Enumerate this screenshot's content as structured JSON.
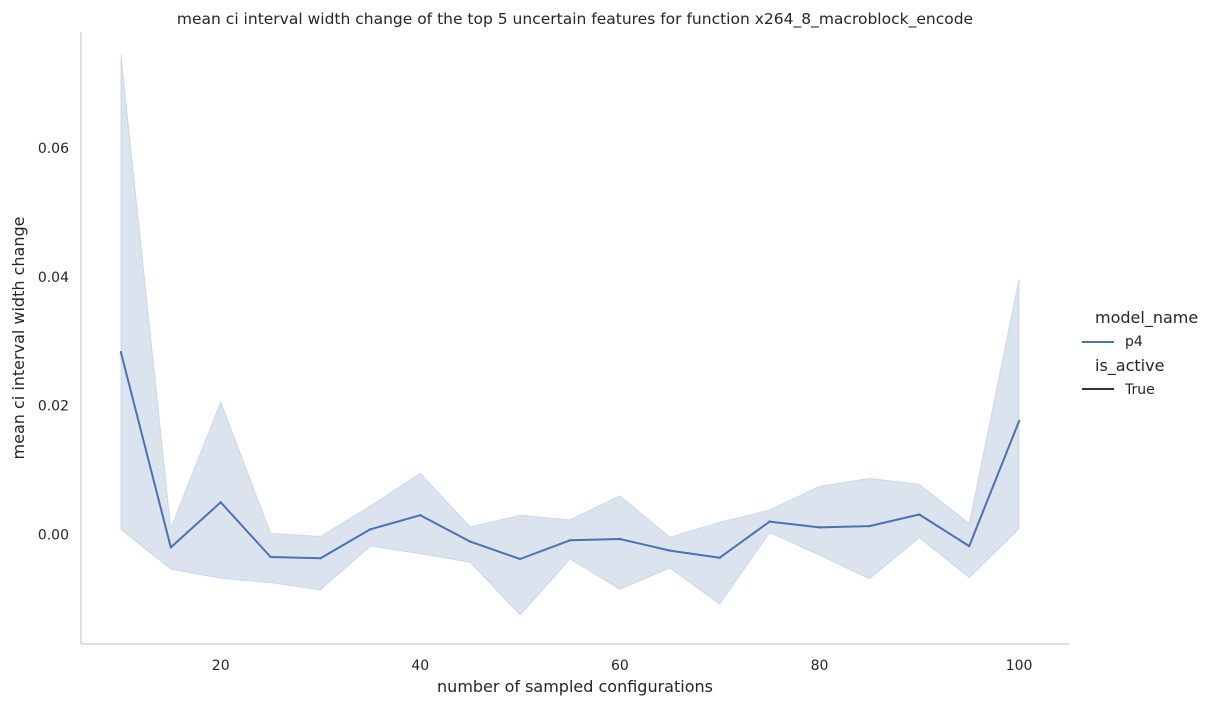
{
  "chart_data": {
    "type": "line",
    "title": "mean ci interval width change of the top 5 uncertain features for function x264_8_macroblock_encode",
    "xlabel": "number of sampled configurations",
    "ylabel": "mean ci interval width change",
    "xlim": [
      6,
      105
    ],
    "ylim": [
      -0.017,
      0.078
    ],
    "xticks": [
      20,
      40,
      60,
      80,
      100
    ],
    "xtick_labels": [
      "20",
      "40",
      "60",
      "80",
      "100"
    ],
    "yticks": [
      0.0,
      0.02,
      0.04,
      0.06
    ],
    "ytick_labels": [
      "0.00",
      "0.02",
      "0.04",
      "0.06"
    ],
    "grid": false,
    "legend_position": "right",
    "legend": [
      {
        "title": "model_name",
        "entries": [
          {
            "label": "p4",
            "color": "#4C72B0"
          }
        ]
      },
      {
        "title": "is_active",
        "entries": [
          {
            "label": "True",
            "color": "#333333"
          }
        ]
      }
    ],
    "x": [
      10,
      15,
      20,
      25,
      30,
      35,
      40,
      45,
      50,
      55,
      60,
      65,
      70,
      75,
      80,
      85,
      90,
      95,
      100
    ],
    "series": [
      {
        "name": "p4",
        "color": "#4C72B0",
        "values": [
          0.0283,
          -0.002,
          0.005,
          -0.0035,
          -0.0037,
          0.0008,
          0.003,
          -0.0011,
          -0.0038,
          -0.0009,
          -0.0007,
          -0.0025,
          -0.0036,
          0.002,
          0.0011,
          0.0013,
          0.0031,
          -0.0018,
          0.0176
        ],
        "ci_upper": [
          0.0745,
          0.001,
          0.0206,
          0.0002,
          -0.0003,
          0.0044,
          0.0095,
          0.0012,
          0.003,
          0.0023,
          0.006,
          -0.0004,
          0.0019,
          0.0038,
          0.0075,
          0.0087,
          0.0078,
          0.0017,
          0.0397
        ],
        "ci_lower": [
          0.0008,
          -0.0054,
          -0.0068,
          -0.0075,
          -0.0086,
          -0.0018,
          -0.003,
          -0.0043,
          -0.0125,
          -0.0038,
          -0.0085,
          -0.0052,
          -0.0108,
          0.0003,
          -0.0032,
          -0.0069,
          -0.0005,
          -0.0067,
          0.0009
        ]
      }
    ]
  }
}
